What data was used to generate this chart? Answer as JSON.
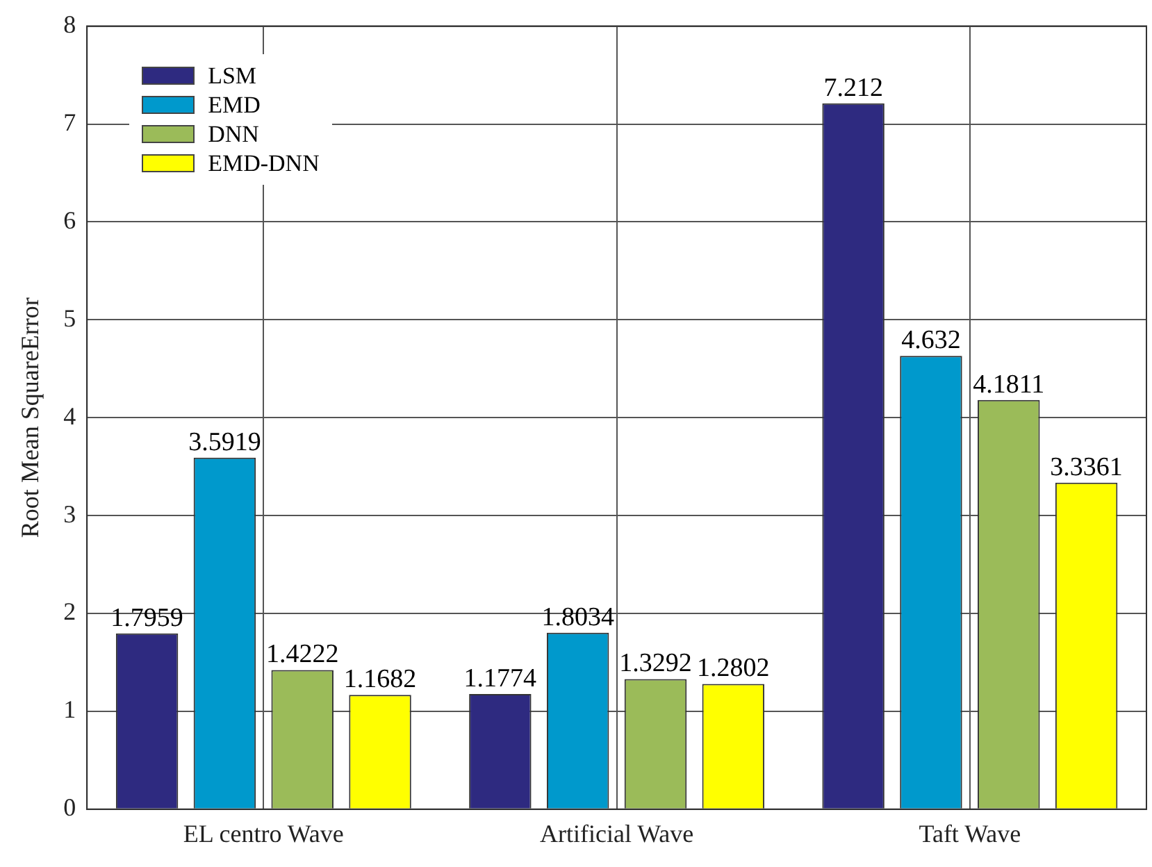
{
  "chart_data": {
    "type": "bar",
    "ylabel": "Root Mean SquareError",
    "categories": [
      "EL centro Wave",
      "Artificial Wave",
      "Taft Wave"
    ],
    "series": [
      {
        "name": "LSM",
        "color": "#2e2a80",
        "values": [
          1.7959,
          1.1774,
          7.212
        ]
      },
      {
        "name": "EMD",
        "color": "#0099cc",
        "values": [
          3.5919,
          1.8034,
          4.632
        ]
      },
      {
        "name": "DNN",
        "color": "#9bbb59",
        "values": [
          1.4222,
          1.3292,
          4.1811
        ]
      },
      {
        "name": "EMD-DNN",
        "color": "#ffff00",
        "values": [
          1.1682,
          1.2802,
          3.3361
        ]
      }
    ],
    "ylim": [
      0,
      8
    ],
    "yticks": [
      0,
      1,
      2,
      3,
      4,
      5,
      6,
      7,
      8
    ],
    "grid": true,
    "legend": "top left",
    "data_labels": true
  }
}
